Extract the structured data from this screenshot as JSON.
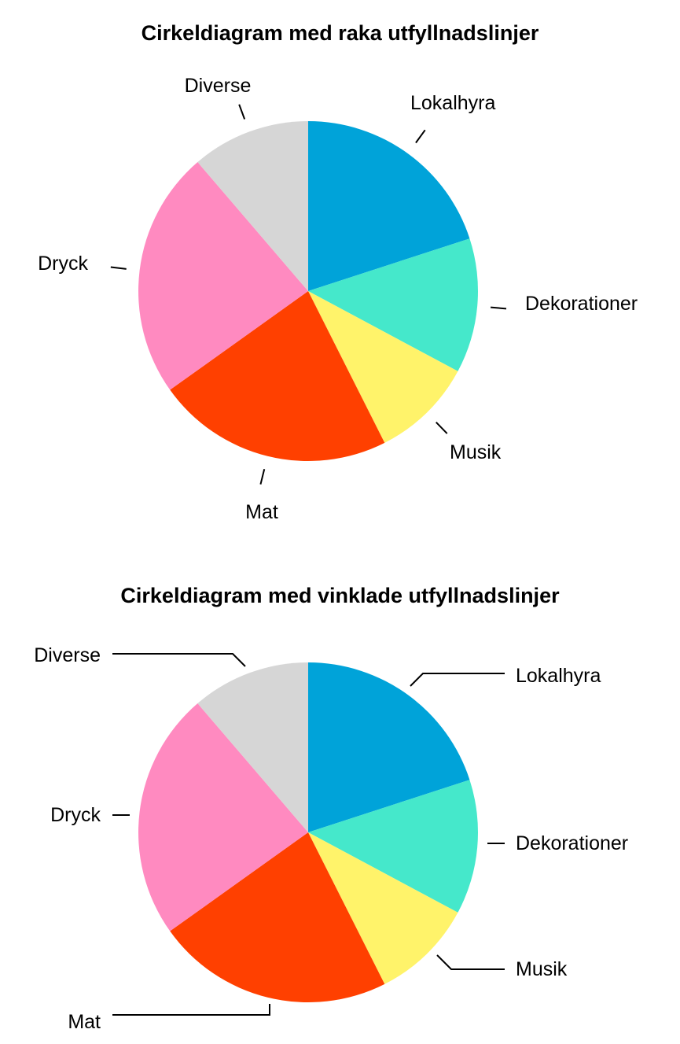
{
  "chart_data": [
    {
      "type": "pie",
      "title": "Cirkeldiagram med raka utfyllnadslinjer",
      "leader_style": "straight",
      "slices": [
        {
          "label": "Lokalhyra",
          "value": 19.5,
          "color": "#00A3D9"
        },
        {
          "label": "Dekorationer",
          "value": 12.5,
          "color": "#45E8CB"
        },
        {
          "label": "Musik",
          "value": 9.5,
          "color": "#FFF36A"
        },
        {
          "label": "Mat",
          "value": 22,
          "color": "#FF4000"
        },
        {
          "label": "Dryck",
          "value": 23,
          "color": "#FF8AC0"
        },
        {
          "label": "Diverse",
          "value": 11,
          "color": "#D6D6D6"
        }
      ]
    },
    {
      "type": "pie",
      "title": "Cirkeldiagram med vinklade utfyllnadslinjer",
      "leader_style": "angled",
      "slices": [
        {
          "label": "Lokalhyra",
          "value": 19.5,
          "color": "#00A3D9"
        },
        {
          "label": "Dekorationer",
          "value": 12.5,
          "color": "#45E8CB"
        },
        {
          "label": "Musik",
          "value": 9.5,
          "color": "#FFF36A"
        },
        {
          "label": "Mat",
          "value": 22,
          "color": "#FF4000"
        },
        {
          "label": "Dryck",
          "value": 23,
          "color": "#FF8AC0"
        },
        {
          "label": "Diverse",
          "value": 11,
          "color": "#D6D6D6"
        }
      ]
    }
  ]
}
